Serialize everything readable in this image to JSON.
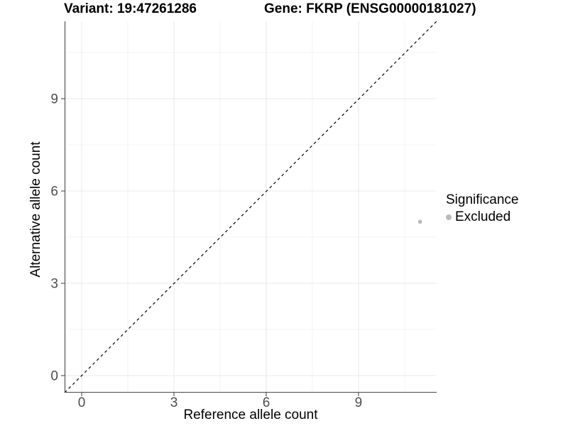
{
  "chart_data": {
    "type": "scatter",
    "title_left": "Variant: 19:47261286",
    "title_right": "Gene: FKRP (ENSG00000181027)",
    "xlabel": "Reference allele count",
    "ylabel": "Alternative allele count",
    "xlim": [
      -0.55,
      11.55
    ],
    "ylim": [
      -0.55,
      11.55
    ],
    "xticks": [
      0,
      3,
      6,
      9
    ],
    "yticks": [
      0,
      3,
      6,
      9
    ],
    "minor_breaks": [
      1.5,
      4.5,
      7.5,
      10.5
    ],
    "grid": true,
    "series": [
      {
        "name": "Excluded",
        "color": "#b9b9b9",
        "points": [
          {
            "x": 11,
            "y": 5
          }
        ]
      }
    ],
    "reference_line": {
      "type": "identity",
      "equation": "y = x",
      "style": "dashed",
      "color": "#000000"
    },
    "legend": {
      "position": "right",
      "title": "Significance",
      "entries": [
        {
          "label": "Excluded",
          "color": "#b9b9b9"
        }
      ]
    }
  },
  "colors": {
    "background": "#ffffff",
    "axis": "#4a4a4a",
    "tick_label": "#4d4d4d",
    "grid_major": "#e8e8e8",
    "grid_minor": "#f3f3f3",
    "text": "#000000"
  }
}
